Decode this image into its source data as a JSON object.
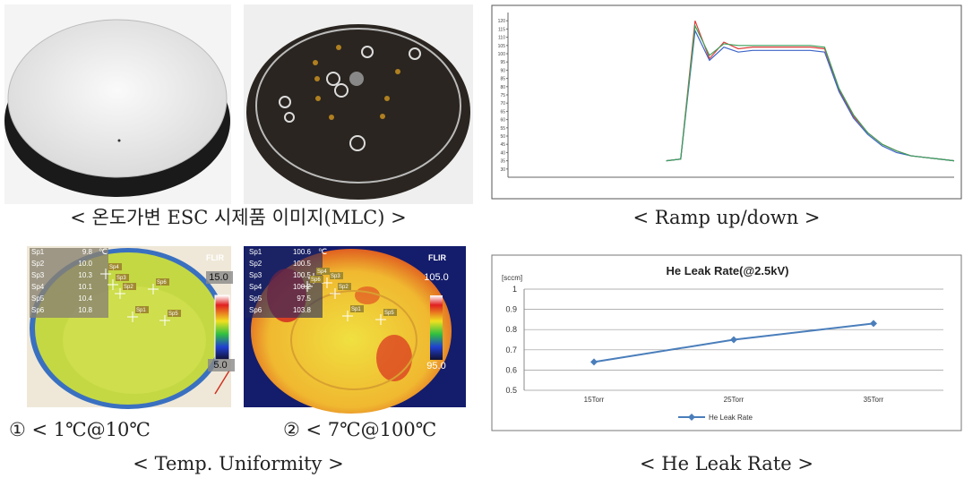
{
  "photos": {
    "caption": "< 온도가변 ESC 시제품 이미지(MLC) >"
  },
  "ramp_chart": {
    "type": "line",
    "caption": "< Ramp up/down >",
    "ylim": [
      25,
      125
    ],
    "yticks": [
      30,
      35,
      40,
      45,
      50,
      55,
      60,
      65,
      70,
      75,
      80,
      85,
      90,
      95,
      100,
      105,
      110,
      115,
      120
    ],
    "series": [
      {
        "color": "#e03c3c",
        "values": [
          null,
          null,
          null,
          null,
          null,
          null,
          null,
          null,
          null,
          null,
          null,
          35,
          36,
          120,
          97,
          107,
          103,
          104,
          104,
          104,
          104,
          104,
          103,
          78,
          62,
          52,
          45,
          41,
          38,
          37,
          36,
          35
        ]
      },
      {
        "color": "#3c64c8",
        "values": [
          null,
          null,
          null,
          null,
          null,
          null,
          null,
          null,
          null,
          null,
          null,
          35,
          36,
          114,
          96,
          104,
          101,
          102,
          102,
          102,
          102,
          102,
          101,
          77,
          61,
          51,
          44,
          40,
          38,
          37,
          36,
          35
        ]
      },
      {
        "color": "#3ca05a",
        "values": [
          null,
          null,
          null,
          null,
          null,
          null,
          null,
          null,
          null,
          null,
          null,
          35,
          36,
          117,
          99,
          106,
          105,
          105,
          105,
          105,
          105,
          105,
          104,
          79,
          63,
          52,
          45,
          41,
          38,
          37,
          36,
          35
        ]
      }
    ]
  },
  "thermal": {
    "caption": "< Temp. Uniformity >",
    "images": [
      {
        "caption": "① < 1℃@10℃",
        "logo": "FLIR",
        "unit": "℃",
        "scale_max": "15.0",
        "scale_min": "5.0",
        "spots": [
          [
            "Sp1",
            "9.8"
          ],
          [
            "Sp2",
            "10.0"
          ],
          [
            "Sp3",
            "10.3"
          ],
          [
            "Sp4",
            "10.1"
          ],
          [
            "Sp5",
            "10.4"
          ],
          [
            "Sp6",
            "10.8"
          ]
        ]
      },
      {
        "caption": "② < 7℃@100℃",
        "logo": "FLIR",
        "unit": "℃",
        "scale_max": "105.0",
        "scale_min": "95.0",
        "spots": [
          [
            "Sp1",
            "100.6"
          ],
          [
            "Sp2",
            "100.5"
          ],
          [
            "Sp3",
            "100.5"
          ],
          [
            "Sp4",
            "100.2"
          ],
          [
            "Sp5",
            "97.5"
          ],
          [
            "Sp6",
            "103.8"
          ]
        ]
      }
    ]
  },
  "leak_chart": {
    "type": "line",
    "title": "He Leak Rate(@2.5kV)",
    "y_label": "[sccm]",
    "caption": "< He Leak Rate >",
    "categories": [
      "15Torr",
      "25Torr",
      "35Torr"
    ],
    "series": [
      {
        "name": "He Leak Rate",
        "color": "#4a7ebb",
        "values": [
          0.64,
          0.75,
          0.83
        ]
      }
    ],
    "ylim": [
      0.5,
      1
    ],
    "yticks": [
      0.5,
      0.6,
      0.7,
      0.8,
      0.9,
      1
    ],
    "grid": true
  }
}
